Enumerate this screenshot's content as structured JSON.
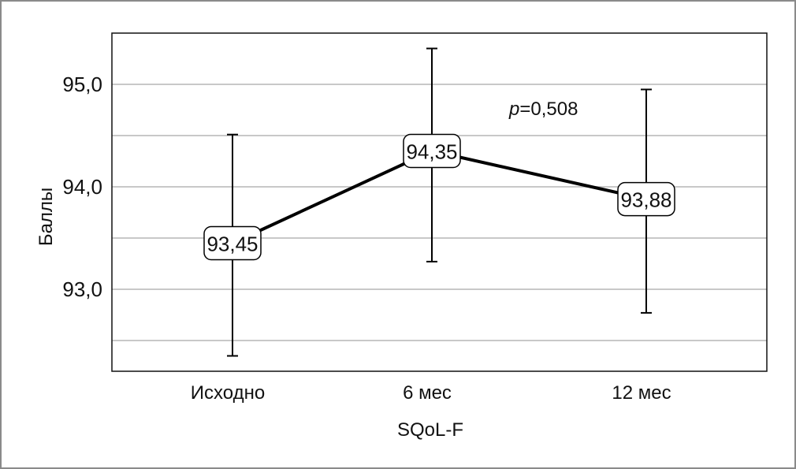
{
  "chart_data": {
    "type": "line",
    "title": "",
    "xlabel": "SQoL-F",
    "ylabel": "Баллы",
    "categories": [
      "Исходно",
      "6 мес",
      "12 мес"
    ],
    "values": [
      93.45,
      94.35,
      93.88
    ],
    "value_labels": [
      "93,45",
      "94,35",
      "93,88"
    ],
    "error_low": [
      92.35,
      93.27,
      92.77
    ],
    "error_high": [
      94.51,
      95.35,
      94.95
    ],
    "ylim": [
      92.2,
      95.5
    ],
    "yticks": [
      93.0,
      94.0,
      95.0
    ],
    "ytick_labels": [
      "93,0",
      "94,0",
      "95,0"
    ],
    "minor_grid": [
      92.5,
      93.5,
      94.5
    ],
    "grid": true,
    "annotation": {
      "italic": "p",
      "text": "=0,508"
    },
    "colors": {
      "line": "#000000",
      "grid": "#c8c8c8"
    }
  }
}
